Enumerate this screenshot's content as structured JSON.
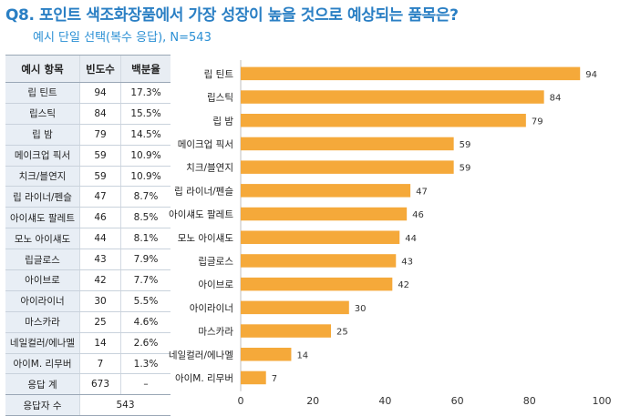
{
  "title": "Q8. 포인트 색조화장품에서 가장 성장이 높을 것으로 예상되는 품목은?",
  "subtitle": "예시 단일 선택(복수 응답), N=543",
  "table": {
    "headers": [
      "예시 항목",
      "빈도수",
      "백분율"
    ],
    "rows": [
      {
        "item": "립 틴트",
        "count": "94",
        "pct": "17.3%"
      },
      {
        "item": "립스틱",
        "count": "84",
        "pct": "15.5%"
      },
      {
        "item": "립 밤",
        "count": "79",
        "pct": "14.5%"
      },
      {
        "item": "메이크업 픽서",
        "count": "59",
        "pct": "10.9%"
      },
      {
        "item": "치크/블연지",
        "count": "59",
        "pct": "10.9%"
      },
      {
        "item": "립 라이너/펜슬",
        "count": "47",
        "pct": "8.7%"
      },
      {
        "item": "아이섀도 팔레트",
        "count": "46",
        "pct": "8.5%"
      },
      {
        "item": "모노 아이섀도",
        "count": "44",
        "pct": "8.1%"
      },
      {
        "item": "립글로스",
        "count": "43",
        "pct": "7.9%"
      },
      {
        "item": "아이브로",
        "count": "42",
        "pct": "7.7%"
      },
      {
        "item": "아이라이너",
        "count": "30",
        "pct": "5.5%"
      },
      {
        "item": "마스카라",
        "count": "25",
        "pct": "4.6%"
      },
      {
        "item": "네일컬러/에나멜",
        "count": "14",
        "pct": "2.6%"
      },
      {
        "item": "아이M. 리무버",
        "count": "7",
        "pct": "1.3%"
      }
    ],
    "total_row": {
      "label": "응답 계",
      "count": "673",
      "pct": "–"
    },
    "respondents_row": {
      "label": "응답자 수",
      "value": "543"
    }
  },
  "chart_data": {
    "type": "bar",
    "orientation": "horizontal",
    "categories": [
      "립 틴트",
      "립스틱",
      "립 밤",
      "메이크업 픽서",
      "치크/블연지",
      "립 라이너/펜슬",
      "아이섀도 팔레트",
      "모노 아이섀도",
      "립글로스",
      "아이브로",
      "아이라이너",
      "마스카라",
      "네일컬러/에나멜",
      "아이M. 리무버"
    ],
    "values": [
      94,
      84,
      79,
      59,
      59,
      47,
      46,
      44,
      43,
      42,
      30,
      25,
      14,
      7
    ],
    "data_labels": [
      "94",
      "84",
      "79",
      "59",
      "59",
      "47",
      "46",
      "44",
      "43",
      "42",
      "30",
      "25",
      "14",
      "7"
    ],
    "xlim": [
      0,
      100
    ],
    "x_ticks": [
      0,
      20,
      40,
      60,
      80,
      100
    ],
    "x_tick_labels": [
      "0",
      "20",
      "40",
      "60",
      "80",
      "100"
    ],
    "grid": false,
    "bar_color": "#f5a93a"
  },
  "colors": {
    "title": "#2a7fc4",
    "subtitle": "#2a8fd4",
    "bar": "#f5a93a",
    "table_header_bg": "#e8edf3",
    "table_label_bg": "#e8eef5"
  }
}
